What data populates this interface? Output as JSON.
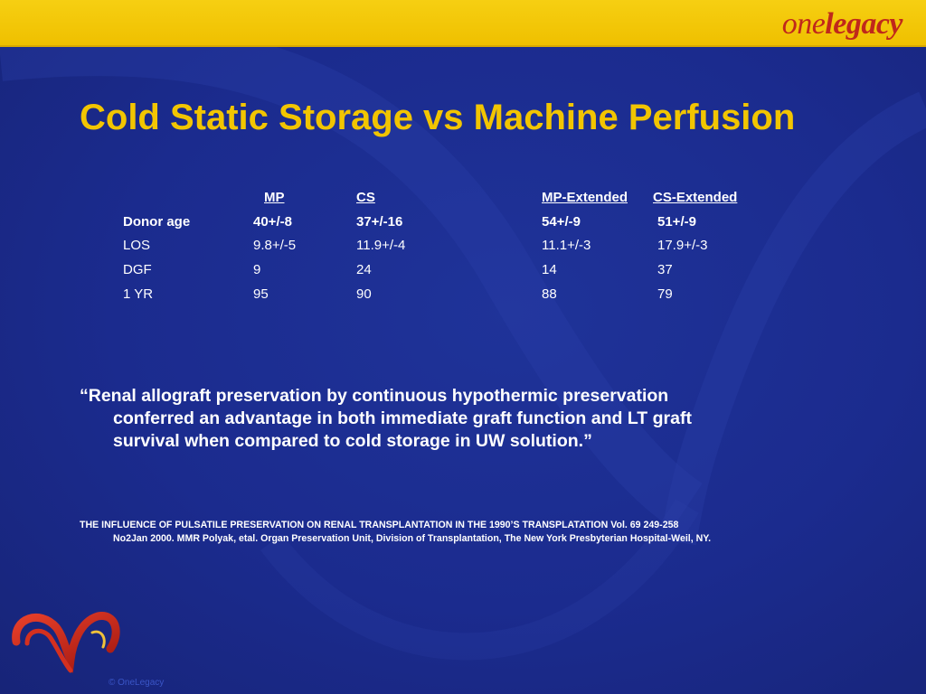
{
  "logo": {
    "one": "one",
    "legacy": "legacy"
  },
  "title": "Cold Static Storage vs Machine Perfusion",
  "table": {
    "headers": [
      "",
      "MP",
      "CS",
      "MP-Extended",
      "CS-Extended"
    ],
    "rows": [
      [
        "Donor age",
        "40+/-8",
        "37+/-16",
        "54+/-9",
        "51+/-9"
      ],
      [
        "LOS",
        "9.8+/-5",
        "11.9+/-4",
        "11.1+/-3",
        "17.9+/-3"
      ],
      [
        "DGF",
        "9",
        "24",
        "14",
        "37"
      ],
      [
        "1 YR",
        "95",
        "90",
        "88",
        "79"
      ]
    ]
  },
  "quote": {
    "line1": "“Renal allograft preservation by continuous hypothermic preservation",
    "line2": "conferred an advantage in both immediate graft function and LT graft",
    "line3": "survival when compared to cold storage in UW solution.”"
  },
  "reference": {
    "line1": "THE INFLUENCE OF PULSATILE PRESERVATION ON RENAL TRANSPLANTATION IN THE 1990’S  TRANSPLATATION Vol. 69 249-258",
    "line2": "No2Jan 2000. MMR Polyak, etal. Organ Preservation Unit, Division of Transplantation, The New York Presbyterian Hospital-Weil, NY."
  },
  "copyright": "© OneLegacy",
  "colors": {
    "background": "#1b2a8c",
    "topbar": "#f2c500",
    "title": "#f2c500",
    "logo": "#c0281b"
  },
  "icons": {
    "logo_mark": "heart-swirl-icon"
  }
}
